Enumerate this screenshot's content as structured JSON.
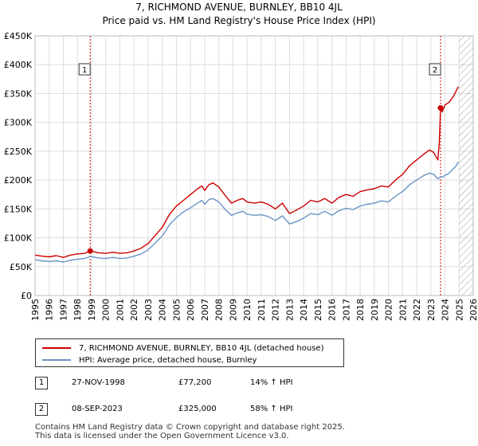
{
  "title_line1": "7, RICHMOND AVENUE, BURNLEY, BB10 4JL",
  "title_line2": "Price paid vs. HM Land Registry's House Price Index (HPI)",
  "colors": {
    "property": "#cc0000",
    "hpi": "#6a93c6",
    "marker_line": "#cc0000",
    "hatch": "#aaaaaa",
    "grid": "#dddddd"
  },
  "chart_data": {
    "type": "line",
    "title": "Price paid vs. HM Land Registry's House Price Index (HPI)",
    "xlabel": "",
    "ylabel": "",
    "xlim": [
      1995,
      2026
    ],
    "ylim": [
      0,
      450000
    ],
    "y_ticks": [
      0,
      50000,
      100000,
      150000,
      200000,
      250000,
      300000,
      350000,
      400000,
      450000
    ],
    "y_tick_labels": [
      "£0",
      "£50K",
      "£100K",
      "£150K",
      "£200K",
      "£250K",
      "£300K",
      "£350K",
      "£400K",
      "£450K"
    ],
    "x_ticks": [
      1995,
      1996,
      1997,
      1998,
      1999,
      2000,
      2001,
      2002,
      2003,
      2004,
      2005,
      2006,
      2007,
      2008,
      2009,
      2010,
      2011,
      2012,
      2013,
      2014,
      2015,
      2016,
      2017,
      2018,
      2019,
      2020,
      2021,
      2022,
      2023,
      2024,
      2025,
      2026
    ],
    "x_tick_labels": [
      "1995",
      "1996",
      "1997",
      "1998",
      "1999",
      "2000",
      "2001",
      "2002",
      "2003",
      "2004",
      "2005",
      "2006",
      "2007",
      "2008",
      "2009",
      "2010",
      "2011",
      "2012",
      "2013",
      "2014",
      "2015",
      "2016",
      "2017",
      "2018",
      "2019",
      "2020",
      "2021",
      "2022",
      "2023",
      "2024",
      "2025",
      "2026"
    ],
    "grid": true,
    "future_hatch_from": 2025.0,
    "series": [
      {
        "name": "7, RICHMOND AVENUE, BURNLEY, BB10 4JL (detached house)",
        "color": "#cc0000",
        "points": [
          [
            1995.0,
            70000
          ],
          [
            1995.5,
            68000
          ],
          [
            1996.0,
            67000
          ],
          [
            1996.5,
            69000
          ],
          [
            1997.0,
            66000
          ],
          [
            1997.5,
            70000
          ],
          [
            1998.0,
            72000
          ],
          [
            1998.5,
            73000
          ],
          [
            1998.9,
            77200
          ],
          [
            1999.5,
            74000
          ],
          [
            2000.0,
            73000
          ],
          [
            2000.5,
            75000
          ],
          [
            2001.0,
            73000
          ],
          [
            2001.5,
            74000
          ],
          [
            2002.0,
            77000
          ],
          [
            2002.5,
            82000
          ],
          [
            2003.0,
            90000
          ],
          [
            2003.5,
            104000
          ],
          [
            2004.0,
            118000
          ],
          [
            2004.5,
            140000
          ],
          [
            2005.0,
            155000
          ],
          [
            2005.5,
            165000
          ],
          [
            2006.0,
            175000
          ],
          [
            2006.5,
            185000
          ],
          [
            2006.8,
            190000
          ],
          [
            2007.0,
            182000
          ],
          [
            2007.3,
            192000
          ],
          [
            2007.6,
            195000
          ],
          [
            2008.0,
            188000
          ],
          [
            2008.5,
            172000
          ],
          [
            2008.9,
            160000
          ],
          [
            2009.3,
            165000
          ],
          [
            2009.7,
            168000
          ],
          [
            2010.0,
            162000
          ],
          [
            2010.5,
            160000
          ],
          [
            2011.0,
            162000
          ],
          [
            2011.5,
            158000
          ],
          [
            2012.0,
            150000
          ],
          [
            2012.5,
            160000
          ],
          [
            2013.0,
            142000
          ],
          [
            2013.5,
            148000
          ],
          [
            2014.0,
            155000
          ],
          [
            2014.5,
            165000
          ],
          [
            2015.0,
            162000
          ],
          [
            2015.5,
            168000
          ],
          [
            2016.0,
            160000
          ],
          [
            2016.5,
            170000
          ],
          [
            2017.0,
            175000
          ],
          [
            2017.5,
            172000
          ],
          [
            2018.0,
            180000
          ],
          [
            2018.5,
            183000
          ],
          [
            2019.0,
            185000
          ],
          [
            2019.5,
            190000
          ],
          [
            2020.0,
            188000
          ],
          [
            2020.5,
            200000
          ],
          [
            2021.0,
            210000
          ],
          [
            2021.5,
            225000
          ],
          [
            2022.0,
            235000
          ],
          [
            2022.5,
            245000
          ],
          [
            2022.9,
            252000
          ],
          [
            2023.2,
            248000
          ],
          [
            2023.5,
            235000
          ],
          [
            2023.6,
            265000
          ],
          [
            2023.69,
            325000
          ],
          [
            2023.8,
            318000
          ],
          [
            2024.0,
            330000
          ],
          [
            2024.3,
            335000
          ],
          [
            2024.6,
            345000
          ],
          [
            2024.8,
            355000
          ],
          [
            2024.95,
            362000
          ]
        ]
      },
      {
        "name": "HPI: Average price, detached house, Burnley",
        "color": "#6a93c6",
        "points": [
          [
            1995.0,
            62000
          ],
          [
            1995.5,
            60000
          ],
          [
            1996.0,
            59000
          ],
          [
            1996.5,
            60000
          ],
          [
            1997.0,
            58000
          ],
          [
            1997.5,
            61000
          ],
          [
            1998.0,
            63000
          ],
          [
            1998.5,
            64000
          ],
          [
            1998.9,
            67600
          ],
          [
            1999.5,
            65000
          ],
          [
            2000.0,
            64000
          ],
          [
            2000.5,
            66000
          ],
          [
            2001.0,
            64000
          ],
          [
            2001.5,
            65000
          ],
          [
            2002.0,
            68000
          ],
          [
            2002.5,
            72000
          ],
          [
            2003.0,
            79000
          ],
          [
            2003.5,
            91000
          ],
          [
            2004.0,
            103000
          ],
          [
            2004.5,
            122000
          ],
          [
            2005.0,
            135000
          ],
          [
            2005.5,
            145000
          ],
          [
            2006.0,
            152000
          ],
          [
            2006.5,
            160000
          ],
          [
            2006.8,
            165000
          ],
          [
            2007.0,
            158000
          ],
          [
            2007.3,
            166000
          ],
          [
            2007.6,
            168000
          ],
          [
            2008.0,
            162000
          ],
          [
            2008.5,
            148000
          ],
          [
            2008.9,
            139000
          ],
          [
            2009.3,
            143000
          ],
          [
            2009.7,
            146000
          ],
          [
            2010.0,
            141000
          ],
          [
            2010.5,
            139000
          ],
          [
            2011.0,
            140000
          ],
          [
            2011.5,
            137000
          ],
          [
            2012.0,
            130000
          ],
          [
            2012.5,
            138000
          ],
          [
            2013.0,
            124000
          ],
          [
            2013.5,
            128000
          ],
          [
            2014.0,
            134000
          ],
          [
            2014.5,
            142000
          ],
          [
            2015.0,
            140000
          ],
          [
            2015.5,
            146000
          ],
          [
            2016.0,
            139000
          ],
          [
            2016.5,
            147000
          ],
          [
            2017.0,
            151000
          ],
          [
            2017.5,
            149000
          ],
          [
            2018.0,
            155000
          ],
          [
            2018.5,
            158000
          ],
          [
            2019.0,
            160000
          ],
          [
            2019.5,
            164000
          ],
          [
            2020.0,
            162000
          ],
          [
            2020.5,
            172000
          ],
          [
            2021.0,
            180000
          ],
          [
            2021.5,
            192000
          ],
          [
            2022.0,
            200000
          ],
          [
            2022.5,
            208000
          ],
          [
            2022.9,
            212000
          ],
          [
            2023.2,
            210000
          ],
          [
            2023.5,
            202000
          ],
          [
            2023.69,
            205700
          ],
          [
            2023.8,
            205000
          ],
          [
            2024.0,
            208000
          ],
          [
            2024.3,
            212000
          ],
          [
            2024.6,
            220000
          ],
          [
            2024.8,
            225000
          ],
          [
            2024.95,
            232000
          ]
        ]
      }
    ],
    "annotations": [
      {
        "label": "1",
        "x": 1998.9,
        "y": 77200
      },
      {
        "label": "2",
        "x": 2023.69,
        "y": 325000
      }
    ]
  },
  "legend": {
    "property_label": "7, RICHMOND AVENUE, BURNLEY, BB10 4JL (detached house)",
    "hpi_label": "HPI: Average price, detached house, Burnley"
  },
  "transactions": [
    {
      "num": "1",
      "date": "27-NOV-1998",
      "price": "£77,200",
      "hpi": "14% ↑ HPI"
    },
    {
      "num": "2",
      "date": "08-SEP-2023",
      "price": "£325,000",
      "hpi": "58% ↑ HPI"
    }
  ],
  "footer_line1": "Contains HM Land Registry data © Crown copyright and database right 2025.",
  "footer_line2": "This data is licensed under the Open Government Licence v3.0."
}
